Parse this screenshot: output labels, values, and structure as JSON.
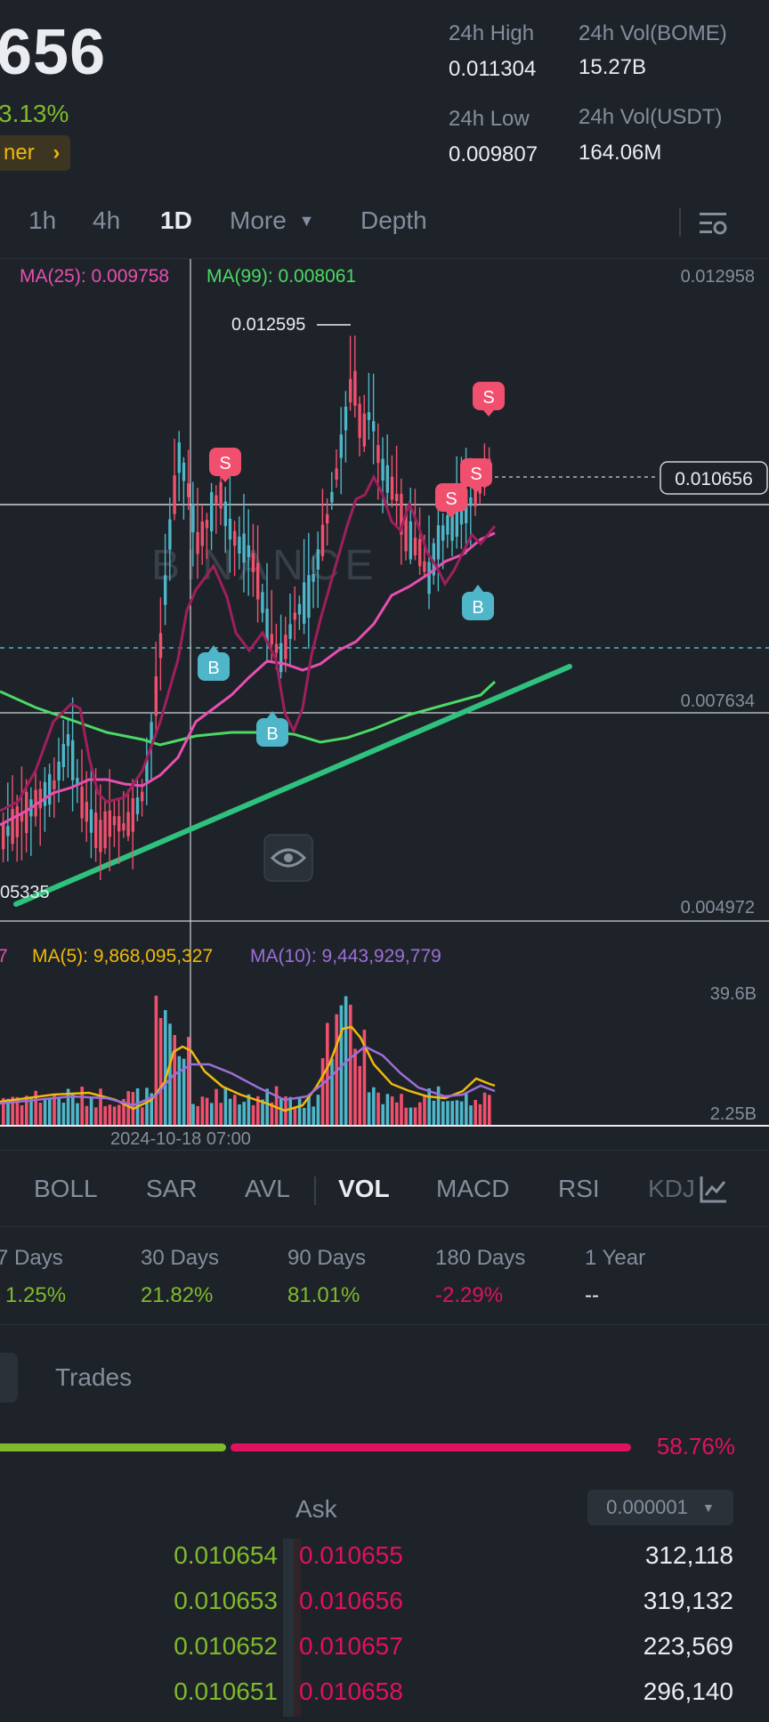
{
  "ticker": {
    "last_price": "656",
    "change_pct": "3.13%",
    "tag_label": "ner",
    "tag_icon": "chevron-right-icon",
    "stats": [
      {
        "label": "24h High",
        "value": "0.011304"
      },
      {
        "label": "24h Vol(BOME)",
        "value": "15.27B"
      },
      {
        "label": "24h Low",
        "value": "0.009807"
      },
      {
        "label": "24h Vol(USDT)",
        "value": "164.06M"
      }
    ]
  },
  "timeframes": {
    "items": [
      "1h",
      "4h",
      "1D",
      "More",
      "Depth"
    ],
    "active": "1D",
    "settings_icon": "chart-settings-icon"
  },
  "chart": {
    "ma25_label": "MA(25): 0.009758",
    "ma99_label": "MA(99): 0.008061",
    "price_axis": [
      "0.012958",
      "0.007634",
      "0.004972"
    ],
    "current_price_label": "0.010656",
    "high_annotation": "0.012595",
    "low_annotation": "05335",
    "crosshair_date": "2024-10-18 07:00",
    "watermark": "BINANCE",
    "markers": [
      "S",
      "S",
      "S",
      "S",
      "B",
      "B",
      "B"
    ],
    "colors": {
      "up": "#4eb6c8",
      "down": "#f0506e",
      "ma7": "#a01f5c",
      "ma25": "#e84fb0",
      "ma99": "#4cd964",
      "trend": "#2ec27e"
    }
  },
  "volume": {
    "label_cut": "7",
    "ma5_label": "MA(5): 9,868,095,327",
    "ma10_label": "MA(10): 9,443,929,779",
    "axis": [
      "39.6B",
      "2.25B"
    ]
  },
  "indicators": {
    "items": [
      "BOLL",
      "SAR",
      "AVL",
      "VOL",
      "MACD",
      "RSI",
      "KDJ"
    ],
    "active": "VOL",
    "icon": "indicator-chart-icon"
  },
  "performance": [
    {
      "label": "7 Days",
      "value": "1.25%",
      "color": "#7fba2a"
    },
    {
      "label": "30 Days",
      "value": "21.82%",
      "color": "#7fba2a"
    },
    {
      "label": "90 Days",
      "value": "81.01%",
      "color": "#7fba2a"
    },
    {
      "label": "180 Days",
      "value": "-2.29%",
      "color": "#e0115f"
    },
    {
      "label": "1 Year",
      "value": "--",
      "color": "#eaecef"
    }
  ],
  "tabs": {
    "trades_label": "Trades"
  },
  "ratio": {
    "ask_pct": "58.76%",
    "bid_fraction": 0.41,
    "ask_fraction": 0.59
  },
  "orderbook": {
    "ask_header": "Ask",
    "precision": "0.000001",
    "rows": [
      {
        "bid": "0.010654",
        "ask": "0.010655",
        "qty": "312,118"
      },
      {
        "bid": "0.010653",
        "ask": "0.010656",
        "qty": "319,132"
      },
      {
        "bid": "0.010652",
        "ask": "0.010657",
        "qty": "223,569"
      },
      {
        "bid": "0.010651",
        "ask": "0.010658",
        "qty": "296,140"
      }
    ]
  }
}
